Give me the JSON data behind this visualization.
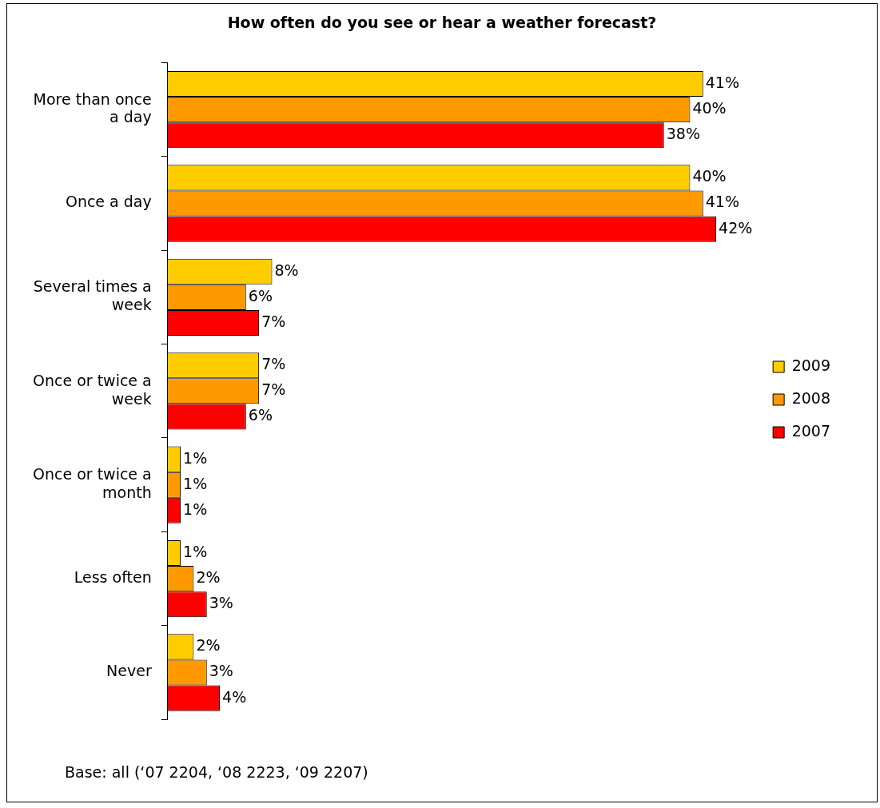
{
  "chart_data": {
    "type": "bar",
    "orientation": "horizontal",
    "title": "How often do you see or hear a weather forecast?",
    "categories": [
      "More than once a day",
      "Once a day",
      "Several times a week",
      "Once or twice a week",
      "Once or twice a month",
      "Less often",
      "Never"
    ],
    "series": [
      {
        "name": "2009",
        "color": "#ffcc00",
        "values": [
          41,
          40,
          8,
          7,
          1,
          1,
          2
        ],
        "value_labels": [
          "41%",
          "40%",
          "8%",
          "7%",
          "1%",
          "1%",
          "2%"
        ]
      },
      {
        "name": "2008",
        "color": "#ff9900",
        "values": [
          40,
          41,
          6,
          7,
          1,
          2,
          3
        ],
        "value_labels": [
          "40%",
          "41%",
          "6%",
          "7%",
          "1%",
          "2%",
          "3%"
        ]
      },
      {
        "name": "2007",
        "color": "#ff0000",
        "values": [
          38,
          42,
          7,
          6,
          1,
          3,
          4
        ],
        "value_labels": [
          "38%",
          "42%",
          "7%",
          "6%",
          "1%",
          "3%",
          "4%"
        ]
      }
    ],
    "grid": false,
    "legend": "right",
    "annotations": [
      "Base: all (‘07 2204, ‘08 2223, ‘09 2207)"
    ]
  }
}
